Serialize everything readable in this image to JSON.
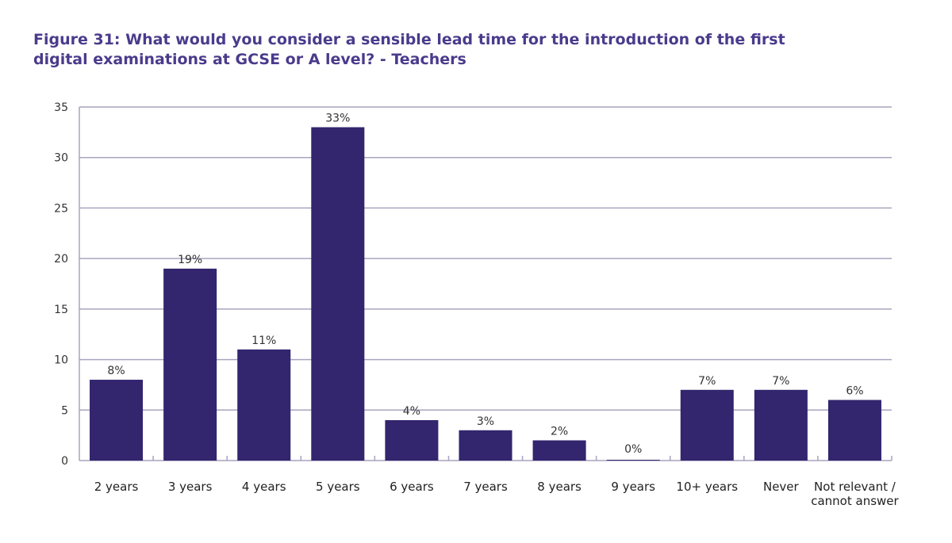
{
  "title": "Figure 31: What would you consider a sensible lead time for the introduction of the first digital examinations at GCSE or A level? - Teachers",
  "colors": {
    "bar": "#33256e",
    "grid": "#a9a4bf",
    "title": "#4a3b8c"
  },
  "chart_data": {
    "type": "bar",
    "title": "Figure 31: What would you consider a sensible lead time for the introduction of the first digital examinations at GCSE or A level? - Teachers",
    "categories": [
      "2 years",
      "3 years",
      "4 years",
      "5 years",
      "6 years",
      "7 years",
      "8 years",
      "9 years",
      "10+ years",
      "Never",
      "Not relevant / cannot answer"
    ],
    "values": [
      8,
      19,
      11,
      33,
      4,
      3,
      2,
      0,
      7,
      7,
      6
    ],
    "data_labels": [
      "8%",
      "19%",
      "11%",
      "33%",
      "4%",
      "3%",
      "2%",
      "0%",
      "7%",
      "7%",
      "6%"
    ],
    "yticks": [
      "0",
      "5",
      "10",
      "15",
      "20",
      "25",
      "30",
      "35"
    ],
    "ylim": [
      0,
      35
    ],
    "grid": true,
    "legend": "none"
  }
}
